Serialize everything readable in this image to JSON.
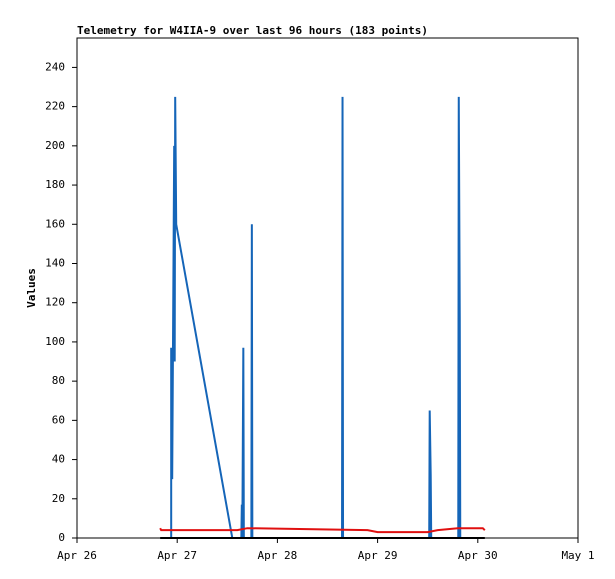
{
  "chart_data": {
    "type": "line",
    "title": "Telemetry for W4IIA-9 over last 96 hours (183 points)",
    "y_label": "Values",
    "xlim": [
      26,
      31
    ],
    "xticks": [
      {
        "value": 26,
        "label": "Apr 26"
      },
      {
        "value": 27,
        "label": "Apr 27"
      },
      {
        "value": 28,
        "label": "Apr 28"
      },
      {
        "value": 29,
        "label": "Apr 29"
      },
      {
        "value": 30,
        "label": "Apr 30"
      },
      {
        "value": 31,
        "label": "May 1"
      }
    ],
    "ylim": [
      0,
      255
    ],
    "yticks": [
      0,
      20,
      40,
      60,
      80,
      100,
      120,
      140,
      160,
      180,
      200,
      220,
      240
    ],
    "series": [
      {
        "color": "#1565b8",
        "x": [
          26.94,
          26.94,
          26.95,
          26.97,
          26.975,
          26.98,
          26.99,
          27.55,
          27.64,
          27.645,
          27.65,
          27.66,
          27.665,
          27.74,
          27.745,
          27.75,
          28.645,
          28.65,
          28.655,
          29.515,
          29.52,
          29.53,
          29.535,
          29.805,
          29.81,
          29.82,
          29.825,
          30.05
        ],
        "values": [
          0,
          97,
          30,
          200,
          90,
          225,
          160,
          0,
          0,
          17,
          0,
          97,
          0,
          0,
          160,
          0,
          0,
          225,
          0,
          0,
          65,
          32,
          0,
          0,
          225,
          112,
          0,
          0
        ]
      },
      {
        "color": "#e01010",
        "x": [
          26.83,
          26.84,
          27.6,
          27.7,
          28.9,
          29.0,
          29.5,
          29.6,
          29.8,
          30.05,
          30.07
        ],
        "values": [
          5,
          4,
          4,
          5,
          4,
          3,
          3,
          4,
          5,
          5,
          4
        ]
      },
      {
        "color": "#000000",
        "x": [
          26.83,
          30.07
        ],
        "values": [
          0,
          0
        ]
      }
    ]
  }
}
